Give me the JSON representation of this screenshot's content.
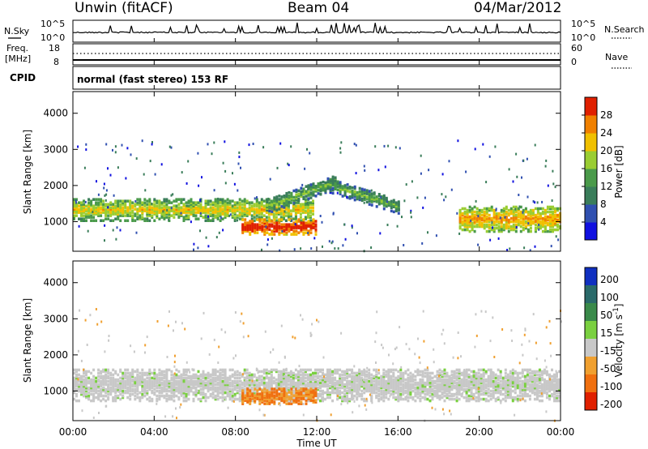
{
  "header": {
    "station": "Unwin (fitACF)",
    "beam": "Beam 04",
    "date": "04/Mar/2012"
  },
  "noise_panel": {
    "left_label": "N.Sky",
    "right_label": "N.Search",
    "left_ticks": [
      "10^5",
      "10^0"
    ],
    "right_ticks": [
      "10^5",
      "10^0"
    ]
  },
  "freq_panel": {
    "left_label_line1": "Freq.",
    "left_label_line2": "[MHz]",
    "right_label": "Nave",
    "left_ticks": [
      "18",
      "8"
    ],
    "right_ticks": [
      "60",
      "0"
    ]
  },
  "cpid_panel": {
    "label": "CPID",
    "text": "normal (fast stereo) 153 RF"
  },
  "chart_data": [
    {
      "type": "heatmap",
      "quantity": "Power",
      "ylabel": "Slant Range [km]",
      "ylim": [
        180,
        4600
      ],
      "y_ticks": [
        1000,
        2000,
        3000,
        4000
      ],
      "xlabel": "Time UT",
      "x_ticks": [
        "00:00",
        "04:00",
        "08:00",
        "12:00",
        "16:00",
        "20:00",
        "00:00"
      ],
      "colorbar": {
        "label": "Power [dB]",
        "ticks": [
          4,
          8,
          12,
          16,
          20,
          24,
          28
        ],
        "range": [
          0,
          32
        ],
        "colors": [
          "#1010e0",
          "#3050b0",
          "#3a7d5a",
          "#4a9a4a",
          "#9acd32",
          "#f0c000",
          "#f08000",
          "#e02000"
        ]
      },
      "features": [
        {
          "name": "ground scatter band",
          "t_start": 0.0,
          "t_end": 11.8,
          "range_km": [
            1000,
            1600
          ],
          "power_db": 17
        },
        {
          "name": "strong echo region",
          "t_start": 8.3,
          "t_end": 11.9,
          "range_km": [
            620,
            1050
          ],
          "power_db": 27
        },
        {
          "name": "arc ascending",
          "t_start": 9.5,
          "t_end": 13.0,
          "range_km": [
            1400,
            2200
          ],
          "power_db": 12
        },
        {
          "name": "arc descending",
          "t_start": 12.5,
          "t_end": 16.0,
          "range_km": [
            1200,
            2100
          ],
          "power_db": 11
        },
        {
          "name": "evening scatter",
          "t_start": 19.0,
          "t_end": 24.0,
          "range_km": [
            700,
            1400
          ],
          "power_db": 20
        }
      ]
    },
    {
      "type": "heatmap",
      "quantity": "Velocity",
      "ylabel": "Slant Range [km]",
      "ylim": [
        180,
        4600
      ],
      "y_ticks": [
        1000,
        2000,
        3000,
        4000
      ],
      "xlabel": "Time UT",
      "x_ticks": [
        "00:00",
        "04:00",
        "08:00",
        "12:00",
        "16:00",
        "20:00",
        "00:00"
      ],
      "colorbar": {
        "label": "Velocity [m s^-1]",
        "ticks": [
          "200",
          "100",
          "50",
          "15",
          "-15",
          "-50",
          "-100",
          "-200"
        ],
        "colors": [
          "#1030c0",
          "#2a6a6a",
          "#3a8a4a",
          "#7ad040",
          "#c8c8c8",
          "#f0a030",
          "#f07010",
          "#e02000"
        ]
      },
      "features": [
        {
          "name": "ground scatter (grey)",
          "t_start": 0.0,
          "t_end": 24.0,
          "range_km": [
            700,
            1600
          ],
          "velocity": 0
        },
        {
          "name": "strong echo region",
          "t_start": 8.3,
          "t_end": 11.9,
          "range_km": [
            620,
            1050
          ],
          "velocity": -80
        }
      ]
    }
  ]
}
